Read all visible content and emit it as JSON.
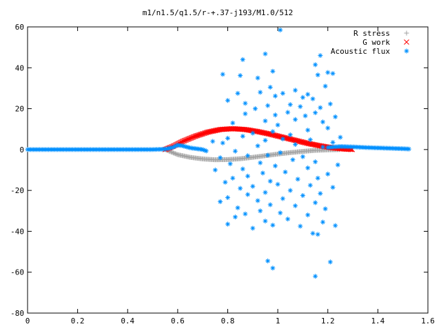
{
  "chart_data": {
    "type": "scatter",
    "title": "m1/n1.5/q1.5/r-+.37-j193/M1.0/512",
    "xlim": [
      0,
      1.6
    ],
    "ylim": [
      -80,
      60
    ],
    "x_ticks": [
      "0",
      "0.2",
      "0.4",
      "0.6",
      "0.8",
      "1",
      "1.2",
      "1.4",
      "1.6"
    ],
    "y_ticks": [
      "60",
      "40",
      "20",
      "0",
      "-20",
      "-40",
      "-60",
      "-80"
    ],
    "legend_position": "top-right",
    "grid": false,
    "series": [
      {
        "name": "R stress",
        "marker": "+",
        "color": "#a0a0a0",
        "curve": [
          [
            0.55,
            0
          ],
          [
            0.57,
            -1
          ],
          [
            0.6,
            -2.5
          ],
          [
            0.65,
            -3.8
          ],
          [
            0.7,
            -4.6
          ],
          [
            0.75,
            -5
          ],
          [
            0.8,
            -4.9
          ],
          [
            0.85,
            -4.5
          ],
          [
            0.9,
            -3.8
          ],
          [
            0.95,
            -3
          ],
          [
            1.0,
            -2.2
          ],
          [
            1.05,
            -1.5
          ],
          [
            1.1,
            -0.9
          ],
          [
            1.15,
            -0.4
          ],
          [
            1.2,
            -0.15
          ],
          [
            1.25,
            0
          ]
        ]
      },
      {
        "name": "G work",
        "marker": "x",
        "color": "#ff0000",
        "curve": [
          [
            0.55,
            0
          ],
          [
            0.58,
            1.5
          ],
          [
            0.62,
            4
          ],
          [
            0.67,
            6.5
          ],
          [
            0.72,
            8.5
          ],
          [
            0.77,
            9.8
          ],
          [
            0.82,
            10.2
          ],
          [
            0.87,
            9.8
          ],
          [
            0.92,
            8.8
          ],
          [
            0.97,
            7.5
          ],
          [
            1.02,
            6
          ],
          [
            1.07,
            4.5
          ],
          [
            1.12,
            3
          ],
          [
            1.17,
            1.8
          ],
          [
            1.22,
            0.8
          ],
          [
            1.27,
            0.2
          ],
          [
            1.3,
            0
          ]
        ]
      },
      {
        "name": "Acoustic flux",
        "marker": "*",
        "color": "#0090ff",
        "baseline": [
          [
            0,
            0
          ],
          [
            0.5,
            0
          ],
          [
            0.55,
            0.2
          ],
          [
            0.58,
            1
          ],
          [
            0.6,
            2.2
          ],
          [
            0.62,
            1.8
          ],
          [
            0.65,
            0.8
          ],
          [
            0.7,
            0
          ],
          [
            0.72,
            -1
          ]
        ],
        "tail": [
          [
            1.2,
            1
          ],
          [
            1.25,
            1.5
          ],
          [
            1.3,
            1.3
          ],
          [
            1.35,
            1
          ],
          [
            1.4,
            0.8
          ],
          [
            1.45,
            0.6
          ],
          [
            1.5,
            0.4
          ],
          [
            1.52,
            0.3
          ],
          [
            1.53,
            0.2
          ]
        ],
        "scatter_points": [
          [
            1.01,
            58.5
          ],
          [
            0.95,
            46.8
          ],
          [
            1.17,
            46
          ],
          [
            0.86,
            44
          ],
          [
            1.15,
            41.5
          ],
          [
            0.98,
            38.3
          ],
          [
            1.2,
            37.7
          ],
          [
            1.16,
            36.5
          ],
          [
            1.22,
            37.2
          ],
          [
            0.85,
            36.2
          ],
          [
            0.78,
            36.8
          ],
          [
            0.92,
            35
          ],
          [
            0.97,
            30.5
          ],
          [
            1.07,
            29
          ],
          [
            1.19,
            31
          ],
          [
            0.93,
            28
          ],
          [
            1.02,
            27.5
          ],
          [
            1.12,
            27
          ],
          [
            0.84,
            27.5
          ],
          [
            0.99,
            26.2
          ],
          [
            1.1,
            25.5
          ],
          [
            1.14,
            24.8
          ],
          [
            0.8,
            24
          ],
          [
            0.87,
            22.6
          ],
          [
            1.05,
            22
          ],
          [
            1.21,
            22.3
          ],
          [
            0.96,
            21.5
          ],
          [
            1.09,
            21
          ],
          [
            1.17,
            20.5
          ],
          [
            0.91,
            20
          ],
          [
            1.04,
            18.2
          ],
          [
            1.15,
            18
          ],
          [
            0.87,
            17.5
          ],
          [
            0.99,
            16.9
          ],
          [
            1.11,
            16.5
          ],
          [
            1.23,
            16
          ],
          [
            1.07,
            14.7
          ],
          [
            0.95,
            14
          ],
          [
            1.18,
            13.5
          ],
          [
            0.82,
            13
          ],
          [
            1.0,
            12
          ],
          [
            1.2,
            10.5
          ],
          [
            1.12,
            9.5
          ],
          [
            0.98,
            8.8
          ],
          [
            0.9,
            8
          ],
          [
            1.05,
            7.2
          ],
          [
            1.25,
            6
          ],
          [
            0.86,
            6.5
          ],
          [
            0.8,
            5.5
          ],
          [
            1.02,
            5.2
          ],
          [
            0.95,
            4.5
          ],
          [
            1.13,
            4.8
          ],
          [
            0.78,
            3.2
          ],
          [
            1.07,
            2.5
          ],
          [
            1.22,
            3.5
          ],
          [
            0.74,
            4
          ],
          [
            0.92,
            1.8
          ],
          [
            1.18,
            1.2
          ],
          [
            0.83,
            -0.8
          ],
          [
            1.01,
            -1.5
          ],
          [
            0.88,
            -3
          ],
          [
            0.96,
            -2.8
          ],
          [
            1.1,
            -3.5
          ],
          [
            0.77,
            -4
          ],
          [
            1.06,
            -5
          ],
          [
            0.93,
            -6.5
          ],
          [
            1.15,
            -6
          ],
          [
            0.81,
            -7
          ],
          [
            1.24,
            -7.5
          ],
          [
            0.99,
            -8
          ],
          [
            0.86,
            -9.5
          ],
          [
            1.12,
            -9
          ],
          [
            0.75,
            -10
          ],
          [
            1.03,
            -11
          ],
          [
            0.94,
            -11.5
          ],
          [
            1.2,
            -12
          ],
          [
            0.88,
            -13
          ],
          [
            0.82,
            -14
          ],
          [
            1.08,
            -14.5
          ],
          [
            1.16,
            -14
          ],
          [
            0.97,
            -15.5
          ],
          [
            0.79,
            -16
          ],
          [
            1.0,
            -17
          ],
          [
            1.13,
            -17.5
          ],
          [
            0.9,
            -18
          ],
          [
            1.22,
            -18.5
          ],
          [
            0.85,
            -19
          ],
          [
            1.05,
            -20
          ],
          [
            0.95,
            -21
          ],
          [
            1.17,
            -21.5
          ],
          [
            0.88,
            -22
          ],
          [
            1.1,
            -22.5
          ],
          [
            0.8,
            -23.5
          ],
          [
            1.02,
            -24
          ],
          [
            0.92,
            -25
          ],
          [
            0.77,
            -25.5
          ],
          [
            1.15,
            -26
          ],
          [
            0.97,
            -27
          ],
          [
            1.07,
            -27.5
          ],
          [
            0.84,
            -28.5
          ],
          [
            1.19,
            -29
          ],
          [
            0.93,
            -30
          ],
          [
            1.01,
            -31
          ],
          [
            0.87,
            -31.5
          ],
          [
            1.12,
            -32
          ],
          [
            0.83,
            -33
          ],
          [
            1.04,
            -34
          ],
          [
            0.95,
            -35
          ],
          [
            1.18,
            -35.5
          ],
          [
            0.8,
            -36.5
          ],
          [
            0.98,
            -37
          ],
          [
            1.09,
            -37.5
          ],
          [
            1.23,
            -37.2
          ],
          [
            0.9,
            -38.5
          ],
          [
            1.16,
            -41.5
          ],
          [
            1.14,
            -41
          ],
          [
            0.96,
            -54.5
          ],
          [
            1.21,
            -55
          ],
          [
            0.98,
            -58
          ],
          [
            1.15,
            -62
          ]
        ]
      }
    ]
  }
}
